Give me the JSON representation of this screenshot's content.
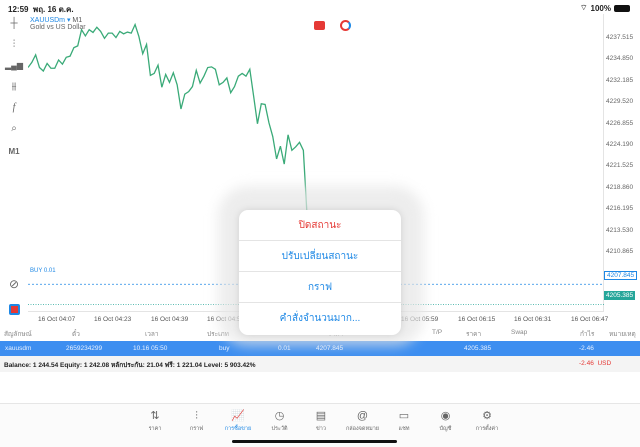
{
  "status_bar": {
    "time": "12:59",
    "date": "พฤ. 16 ต.ค.",
    "battery": "100%"
  },
  "chart_header": {
    "symbol": "XAUUSDm",
    "timeframe": "M1",
    "description": "Gold vs US Dollar"
  },
  "toolbar": {
    "timeframe_label": "M1",
    "icons": [
      "crosshair-icon",
      "candlestick-icon",
      "chart-type-icon",
      "indicators-icon",
      "function-icon",
      "objects-icon",
      "timeframe",
      "quick-chart-icon",
      "one-click-trading-icon"
    ]
  },
  "chart_data": {
    "type": "line",
    "title": "",
    "series": [
      {
        "values": [
          4233.95,
          4234.57,
          4235.48,
          4233.95,
          4233.53,
          4234.44,
          4233.86,
          4233.86,
          4234.86,
          4234.36,
          4235.19,
          4235.32,
          4236.35,
          4236.56,
          4238.51,
          4237.76,
          4238.51,
          4238.18,
          4238.8,
          4238.3,
          4237.47,
          4238.1,
          4238.1,
          4237.56,
          4238.3,
          4238.01,
          4238.22,
          4238.1,
          4239.13,
          4237.68,
          4235.61,
          4236.73,
          4233.01,
          4233.24,
          4234.24,
          4231.58,
          4233.12,
          4232.16,
          4233.32,
          4231.87,
          4228.96,
          4230.75,
          4231.04,
          4231.66,
          4233.61,
          4232.08,
          4232.91,
          4233.95,
          4234.03,
          4233.74,
          4231.87,
          4232.16,
          4232.7,
          4230.92,
          4231.66,
          4232.91,
          4233.24,
          4232.91,
          4233.74,
          4230.5,
          4227.18,
          4229.59,
          4229.5,
          4227.3,
          4225.64,
          4222.94,
          4224.48,
          4222.32,
          4225.85,
          4223.98,
          4224.4,
          4224.94,
          4223.98,
          4215.89,
          4205.39
        ],
        "color": "#3aaa78"
      }
    ],
    "y_ticks": [
      "4237.515",
      "4234.850",
      "4232.185",
      "4229.520",
      "4226.855",
      "4224.190",
      "4221.525",
      "4218.860",
      "4216.195",
      "4213.530",
      "4210.865"
    ],
    "x_ticks": [
      "16 Oct 04:07",
      "16 Oct 04:23",
      "16 Oct 04:39",
      "16 Oct 04:55",
      "16 Oct 05:59",
      "16 Oct 06:15",
      "16 Oct 06:31",
      "16 Oct 06:47"
    ],
    "ylim": [
      4204.5,
      4240.4
    ],
    "grid": false,
    "order_line": {
      "label": "BUY 0.01",
      "price": "4207.845",
      "color": "#1e88e5"
    },
    "bid_line": {
      "price": "4205.385",
      "color": "#26a69a"
    }
  },
  "positions": {
    "headers": [
      "สัญลักษณ์",
      "ตั๋ว",
      "เวลา",
      "ประเภท",
      "Volume",
      "ราคา",
      "S/L",
      "T/P",
      "ราคา",
      "Swap",
      "กำไร",
      "หมายเหตุ"
    ],
    "rows": [
      {
        "symbol": "xauusdm",
        "ticket": "2659234299",
        "time": "10.16 05:50",
        "type": "buy",
        "volume": "0.01",
        "open_price": "4207.845",
        "price": "4205.385",
        "profit": "-2.46"
      }
    ],
    "summary": "Balance: 1 244.54 Equity: 1 242.08 หลักประกัน: 21.04 ฟรี: 1 221.04 Level: 5 903.42%",
    "total_profit": "-2.46",
    "currency": "USD"
  },
  "context_menu": {
    "items": [
      "ปิดสถานะ",
      "ปรับเปลี่ยนสถานะ",
      "กราฟ",
      "คำสั่งจำนวนมาก..."
    ]
  },
  "tabbar": {
    "active": 2,
    "items": [
      {
        "label": "ราคา",
        "icon": "quotes-icon"
      },
      {
        "label": "กราฟ",
        "icon": "chart-icon"
      },
      {
        "label": "การซื้อขาย",
        "icon": "trade-icon"
      },
      {
        "label": "ประวัติ",
        "icon": "history-icon"
      },
      {
        "label": "ข่าว",
        "icon": "news-icon"
      },
      {
        "label": "กล่องจดหมาย",
        "icon": "mailbox-icon"
      },
      {
        "label": "แชท",
        "icon": "chat-icon"
      },
      {
        "label": "บัญชี",
        "icon": "account-icon"
      },
      {
        "label": "การตั้งค่า",
        "icon": "settings-icon"
      }
    ]
  }
}
